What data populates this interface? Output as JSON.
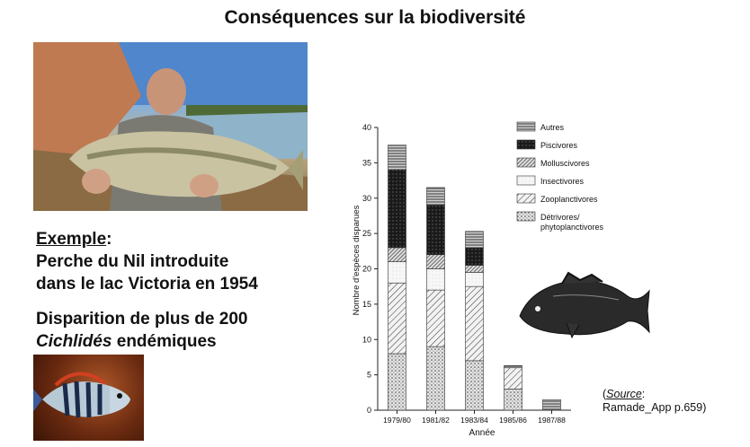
{
  "page": {
    "title": "Conséquences sur la biodiversité"
  },
  "example": {
    "label": "Exemple",
    "suffix": ":",
    "line1": "Perche du Nil introduite",
    "line2": "dans le lac Victoria en 1954"
  },
  "extinction": {
    "line1": "Disparition de plus de 200",
    "species": "Cichlidés",
    "line2_suffix": " endémiques"
  },
  "source": {
    "open": "(",
    "label": "Source",
    "colon": ":",
    "reference": "Ramade_App p.659)"
  },
  "chart_data": {
    "type": "bar",
    "stacked": true,
    "xlabel": "Année",
    "ylabel": "Nombre d'espèces disparues",
    "ylim": [
      0,
      40
    ],
    "yticks": [
      0,
      5,
      10,
      15,
      20,
      25,
      30,
      35,
      40
    ],
    "categories": [
      "1979/80",
      "1981/82",
      "1983/84",
      "1985/86",
      "1987/88"
    ],
    "legend_position": "top-right",
    "series": [
      {
        "name": "Détrivores/ phytoplanctivores",
        "pattern": "dots",
        "values": [
          8,
          9,
          7,
          3,
          0
        ]
      },
      {
        "name": "Zooplanctivores",
        "pattern": "hatch-sparse",
        "values": [
          10,
          8,
          10.5,
          3,
          0
        ]
      },
      {
        "name": "Insectivores",
        "pattern": "light",
        "values": [
          3,
          3,
          2,
          0,
          0
        ]
      },
      {
        "name": "Molluscivores",
        "pattern": "hatch-dense",
        "values": [
          2,
          2,
          1,
          0,
          0
        ]
      },
      {
        "name": "Piscivores",
        "pattern": "dark",
        "values": [
          11,
          7,
          2.5,
          0,
          0
        ]
      },
      {
        "name": "Autres",
        "pattern": "stripes",
        "values": [
          3.5,
          2.5,
          2.3,
          0.3,
          1.5
        ]
      }
    ]
  }
}
